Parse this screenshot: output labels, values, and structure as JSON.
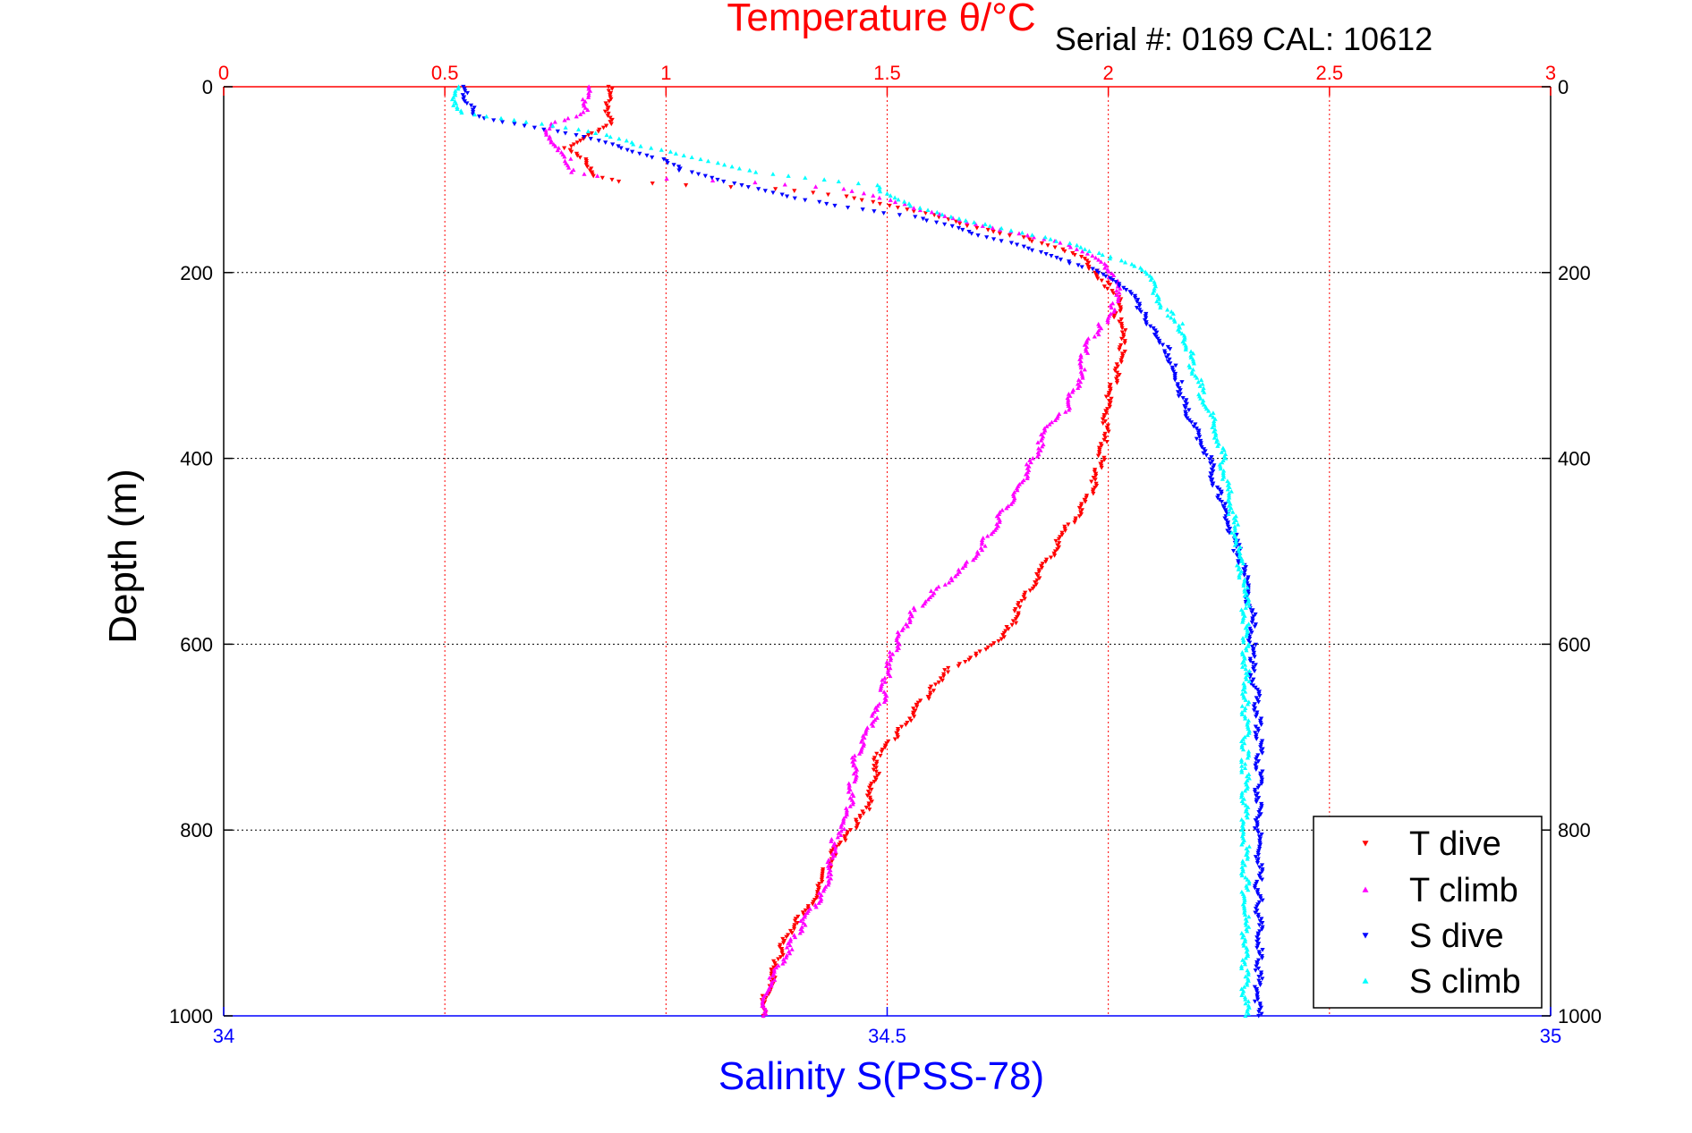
{
  "chart_data": {
    "type": "scatter",
    "title": "Temperature θ/°C",
    "subtitle": "Serial #: 0169 CAL: 10612",
    "top_axis": {
      "label": "Temperature θ/°C",
      "range": [
        0,
        3
      ],
      "ticks": [
        "0",
        "0.5",
        "1",
        "1.5",
        "2",
        "2.5",
        "3"
      ],
      "color": "#ff0000"
    },
    "bottom_axis": {
      "label": "Salinity S(PSS-78)",
      "range": [
        34,
        35
      ],
      "ticks": [
        "34",
        "34.5",
        "35"
      ],
      "color": "#0000ff"
    },
    "y_axis": {
      "label": "Depth (m)",
      "range": [
        0,
        1000
      ],
      "reversed": true,
      "ticks": [
        "0",
        "200",
        "400",
        "600",
        "800",
        "1000"
      ]
    },
    "grid": true,
    "legend_position": "bottom-right",
    "series": [
      {
        "name": "T dive",
        "axis": "temperature",
        "color": "#ff0000",
        "marker": "triangle-down",
        "points": [
          [
            0.87,
            0
          ],
          [
            0.87,
            40
          ],
          [
            0.84,
            48
          ],
          [
            0.8,
            58
          ],
          [
            0.77,
            66
          ],
          [
            0.79,
            72
          ],
          [
            0.82,
            78
          ],
          [
            0.83,
            86
          ],
          [
            0.84,
            96
          ],
          [
            0.9,
            102
          ],
          [
            1.05,
            106
          ],
          [
            1.25,
            110
          ],
          [
            1.4,
            118
          ],
          [
            1.5,
            128
          ],
          [
            1.6,
            138
          ],
          [
            1.7,
            152
          ],
          [
            1.8,
            162
          ],
          [
            1.9,
            175
          ],
          [
            1.95,
            185
          ],
          [
            1.97,
            200
          ],
          [
            2.0,
            215
          ],
          [
            2.02,
            222
          ],
          [
            2.02,
            248
          ],
          [
            2.03,
            262
          ],
          [
            2.03,
            285
          ],
          [
            2.02,
            310
          ],
          [
            2.0,
            340
          ],
          [
            1.99,
            380
          ],
          [
            1.98,
            410
          ],
          [
            1.96,
            440
          ],
          [
            1.9,
            480
          ],
          [
            1.85,
            520
          ],
          [
            1.8,
            560
          ],
          [
            1.77,
            590
          ],
          [
            1.7,
            610
          ],
          [
            1.63,
            630
          ],
          [
            1.6,
            650
          ],
          [
            1.55,
            680
          ],
          [
            1.52,
            700
          ],
          [
            1.48,
            720
          ],
          [
            1.47,
            750
          ],
          [
            1.45,
            780
          ],
          [
            1.42,
            800
          ],
          [
            1.38,
            820
          ],
          [
            1.35,
            860
          ],
          [
            1.33,
            875
          ],
          [
            1.29,
            900
          ],
          [
            1.26,
            930
          ],
          [
            1.23,
            970
          ],
          [
            1.22,
            1000
          ]
        ]
      },
      {
        "name": "T climb",
        "axis": "temperature",
        "color": "#ff00ff",
        "marker": "triangle-up",
        "points": [
          [
            0.82,
            0
          ],
          [
            0.82,
            25
          ],
          [
            0.79,
            32
          ],
          [
            0.74,
            40
          ],
          [
            0.73,
            45
          ],
          [
            0.74,
            56
          ],
          [
            0.76,
            66
          ],
          [
            0.78,
            80
          ],
          [
            0.79,
            92
          ],
          [
            0.85,
            96
          ],
          [
            1.0,
            99
          ],
          [
            1.2,
            103
          ],
          [
            1.4,
            110
          ],
          [
            1.5,
            122
          ],
          [
            1.6,
            135
          ],
          [
            1.7,
            148
          ],
          [
            1.8,
            158
          ],
          [
            1.9,
            168
          ],
          [
            1.97,
            182
          ],
          [
            2.0,
            195
          ],
          [
            2.01,
            205
          ],
          [
            2.02,
            215
          ],
          [
            2.01,
            240
          ],
          [
            1.98,
            260
          ],
          [
            1.95,
            280
          ],
          [
            1.93,
            320
          ],
          [
            1.9,
            350
          ],
          [
            1.86,
            370
          ],
          [
            1.83,
            400
          ],
          [
            1.8,
            430
          ],
          [
            1.76,
            460
          ],
          [
            1.72,
            490
          ],
          [
            1.67,
            520
          ],
          [
            1.6,
            545
          ],
          [
            1.55,
            570
          ],
          [
            1.52,
            600
          ],
          [
            1.5,
            630
          ],
          [
            1.49,
            660
          ],
          [
            1.46,
            690
          ],
          [
            1.43,
            720
          ],
          [
            1.42,
            750
          ],
          [
            1.41,
            790
          ],
          [
            1.38,
            810
          ],
          [
            1.37,
            850
          ],
          [
            1.35,
            870
          ],
          [
            1.31,
            900
          ],
          [
            1.27,
            935
          ],
          [
            1.23,
            970
          ],
          [
            1.22,
            1000
          ]
        ]
      },
      {
        "name": "S dive",
        "axis": "salinity",
        "color": "#0000ff",
        "marker": "triangle-down",
        "points": [
          [
            34.18,
            0
          ],
          [
            34.185,
            20
          ],
          [
            34.19,
            32
          ],
          [
            34.22,
            40
          ],
          [
            34.26,
            50
          ],
          [
            34.29,
            60
          ],
          [
            34.31,
            70
          ],
          [
            34.335,
            80
          ],
          [
            34.345,
            90
          ],
          [
            34.37,
            100
          ],
          [
            34.4,
            110
          ],
          [
            34.43,
            120
          ],
          [
            34.47,
            130
          ],
          [
            34.52,
            140
          ],
          [
            34.55,
            150
          ],
          [
            34.57,
            160
          ],
          [
            34.6,
            170
          ],
          [
            34.62,
            180
          ],
          [
            34.64,
            190
          ],
          [
            34.66,
            200
          ],
          [
            34.67,
            210
          ],
          [
            34.685,
            225
          ],
          [
            34.69,
            240
          ],
          [
            34.7,
            260
          ],
          [
            34.71,
            280
          ],
          [
            34.715,
            300
          ],
          [
            34.72,
            320
          ],
          [
            34.725,
            350
          ],
          [
            34.74,
            390
          ],
          [
            34.75,
            440
          ],
          [
            34.76,
            480
          ],
          [
            34.77,
            530
          ],
          [
            34.775,
            570
          ],
          [
            34.775,
            620
          ],
          [
            34.78,
            680
          ],
          [
            34.78,
            750
          ],
          [
            34.78,
            820
          ],
          [
            34.78,
            880
          ],
          [
            34.78,
            940
          ],
          [
            34.78,
            1000
          ]
        ]
      },
      {
        "name": "S climb",
        "axis": "salinity",
        "color": "#00ffff",
        "marker": "triangle-up",
        "points": [
          [
            34.175,
            0
          ],
          [
            34.175,
            18
          ],
          [
            34.18,
            28
          ],
          [
            34.22,
            36
          ],
          [
            34.26,
            44
          ],
          [
            34.29,
            52
          ],
          [
            34.31,
            62
          ],
          [
            34.34,
            72
          ],
          [
            34.37,
            82
          ],
          [
            34.4,
            92
          ],
          [
            34.45,
            100
          ],
          [
            34.49,
            106
          ],
          [
            34.5,
            115
          ],
          [
            34.52,
            128
          ],
          [
            34.55,
            140
          ],
          [
            34.58,
            150
          ],
          [
            34.62,
            162
          ],
          [
            34.65,
            175
          ],
          [
            34.67,
            185
          ],
          [
            34.69,
            195
          ],
          [
            34.7,
            210
          ],
          [
            34.7,
            222
          ],
          [
            34.71,
            240
          ],
          [
            34.72,
            255
          ],
          [
            34.725,
            270
          ],
          [
            34.73,
            300
          ],
          [
            34.74,
            340
          ],
          [
            34.75,
            380
          ],
          [
            34.755,
            420
          ],
          [
            34.76,
            460
          ],
          [
            34.765,
            500
          ],
          [
            34.77,
            550
          ],
          [
            34.77,
            600
          ],
          [
            34.77,
            660
          ],
          [
            34.77,
            720
          ],
          [
            34.77,
            800
          ],
          [
            34.77,
            880
          ],
          [
            34.77,
            940
          ],
          [
            34.77,
            1000
          ]
        ]
      }
    ]
  }
}
